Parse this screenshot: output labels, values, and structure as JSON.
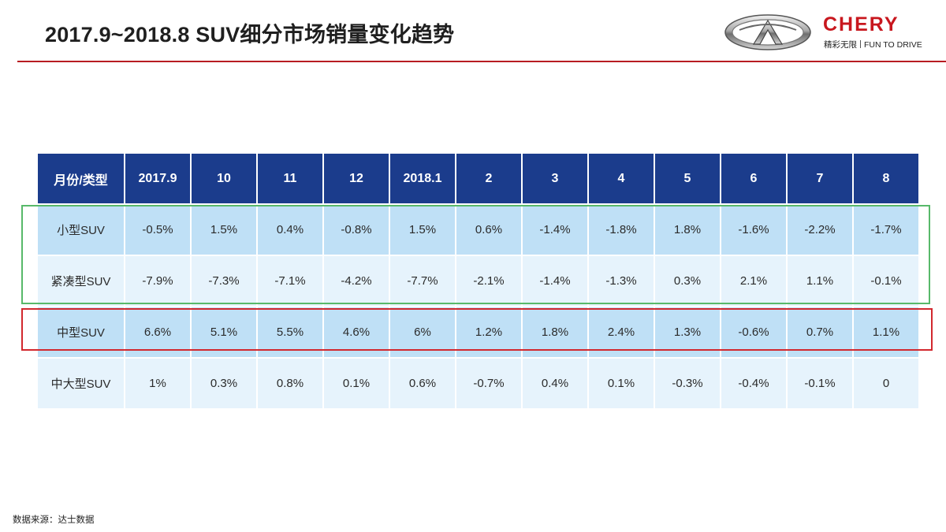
{
  "title": "2017.9~2018.8 SUV细分市场销量变化趋势",
  "logo": {
    "brand": "CHERY",
    "tagline_cn": "精彩无限",
    "tagline_en": "FUN TO DRIVE",
    "colors": {
      "brand": "#c8171e",
      "rule": "#b81c22"
    }
  },
  "table": {
    "header": [
      "月份/类型",
      "2017.9",
      "10",
      "11",
      "12",
      "2018.1",
      "2",
      "3",
      "4",
      "5",
      "6",
      "7",
      "8"
    ],
    "rows": [
      {
        "label": "小型SUV",
        "values": [
          "-0.5%",
          "1.5%",
          "0.4%",
          "-0.8%",
          "1.5%",
          "0.6%",
          "-1.4%",
          "-1.8%",
          "1.8%",
          "-1.6%",
          "-2.2%",
          "-1.7%"
        ]
      },
      {
        "label": "紧凑型SUV",
        "values": [
          "-7.9%",
          "-7.3%",
          "-7.1%",
          "-4.2%",
          "-7.7%",
          "-2.1%",
          "-1.4%",
          "-1.3%",
          "0.3%",
          "2.1%",
          "1.1%",
          "-0.1%"
        ]
      },
      {
        "label": "中型SUV",
        "values": [
          "6.6%",
          "5.1%",
          "5.5%",
          "4.6%",
          "6%",
          "1.2%",
          "1.8%",
          "2.4%",
          "1.3%",
          "-0.6%",
          "0.7%",
          "1.1%"
        ]
      },
      {
        "label": "中大型SUV",
        "values": [
          "1%",
          "0.3%",
          "0.8%",
          "0.1%",
          "0.6%",
          "-0.7%",
          "0.4%",
          "0.1%",
          "-0.3%",
          "-0.4%",
          "-0.1%",
          "0"
        ]
      }
    ],
    "colors": {
      "header_bg": "#1b3c8c",
      "row_light": "#bfe0f6",
      "row_pale": "#e6f3fc",
      "highlight_green": "#58b96a",
      "highlight_red": "#d2282e"
    }
  },
  "source": "数据来源：达士数据"
}
